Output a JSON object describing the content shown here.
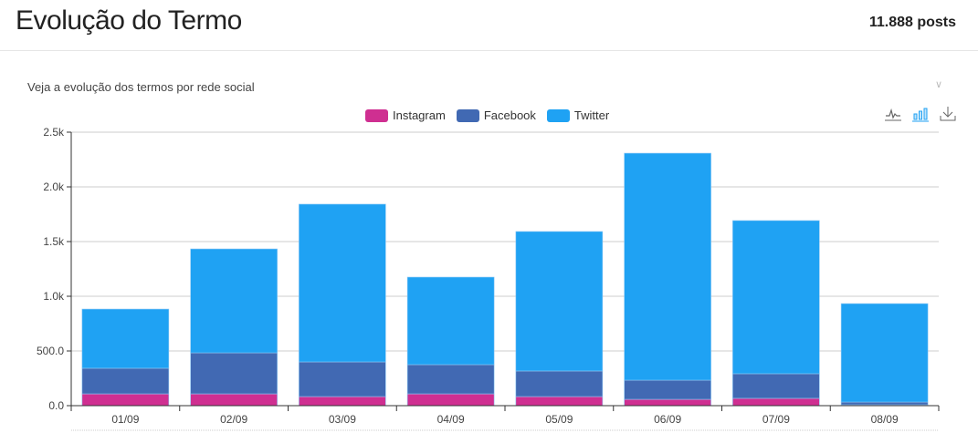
{
  "header": {
    "title": "Evolução do Termo",
    "posts": "11.888 posts"
  },
  "subtitle": "Veja a evolução dos termos por rede social",
  "toolbar": {
    "icons": [
      "line-chart-icon",
      "bar-chart-icon",
      "download-icon"
    ]
  },
  "colors": {
    "Instagram": "#cf2f91",
    "Facebook": "#4169b3",
    "Twitter": "#1fa2f3"
  },
  "chart_data": {
    "type": "bar",
    "stacked": true,
    "title": "",
    "xlabel": "",
    "ylabel": "",
    "categories": [
      "01/09",
      "02/09",
      "03/09",
      "04/09",
      "05/09",
      "06/09",
      "07/09",
      "08/09"
    ],
    "series": [
      {
        "name": "Instagram",
        "values": [
          108,
          108,
          83,
          108,
          83,
          58,
          67,
          8
        ]
      },
      {
        "name": "Facebook",
        "values": [
          234,
          375,
          317,
          267,
          234,
          175,
          225,
          25
        ]
      },
      {
        "name": "Twitter",
        "values": [
          541,
          950,
          1442,
          800,
          1275,
          2075,
          1400,
          900
        ]
      }
    ],
    "ylim": [
      0,
      2500
    ],
    "yticks": [
      {
        "v": 0,
        "label": "0.0"
      },
      {
        "v": 500,
        "label": "500.0"
      },
      {
        "v": 1000,
        "label": "1.0k"
      },
      {
        "v": 1500,
        "label": "1.5k"
      },
      {
        "v": 2000,
        "label": "2.0k"
      },
      {
        "v": 2500,
        "label": "2.5k"
      }
    ],
    "grid": true,
    "legend": "top-center"
  }
}
